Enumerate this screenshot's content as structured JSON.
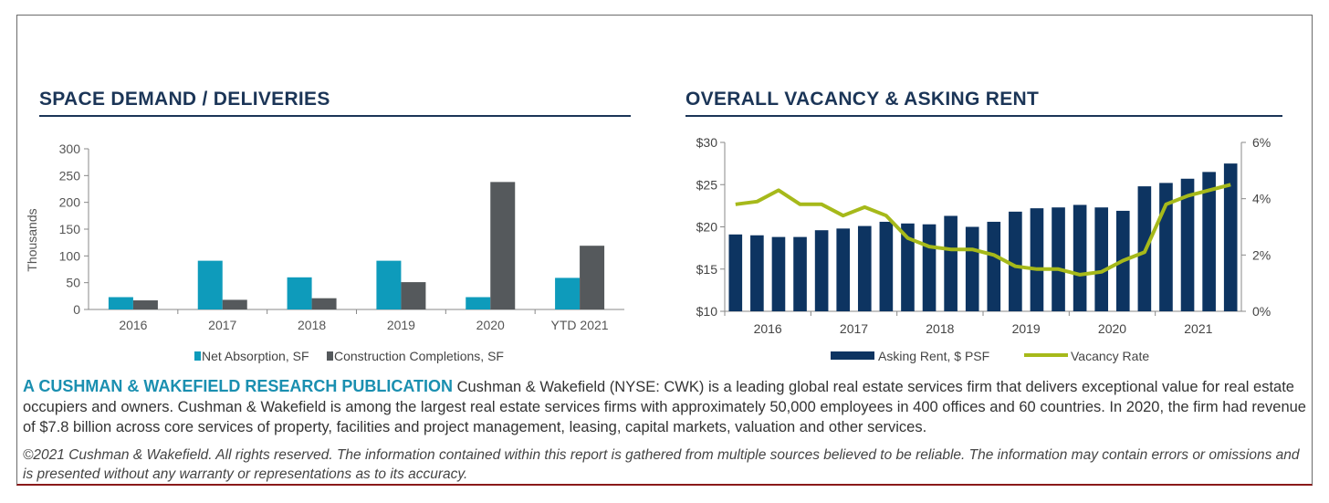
{
  "chart_data": [
    {
      "type": "bar",
      "title": "SPACE DEMAND / DELIVERIES",
      "xlabel": "",
      "ylabel": "Thousands",
      "ylim": [
        0,
        300
      ],
      "yticks": [
        "300",
        "250",
        "200",
        "150",
        "100",
        "50",
        "0"
      ],
      "categories": [
        "2016",
        "2017",
        "2018",
        "2019",
        "2020",
        "YTD 2021"
      ],
      "series": [
        {
          "name": "Net Absorption, SF",
          "color": "#0e9bbb",
          "values": [
            23,
            91,
            60,
            91,
            23,
            59
          ]
        },
        {
          "name": "Construction Completions, SF",
          "color": "#55595c",
          "values": [
            17,
            18,
            21,
            51,
            238,
            119
          ]
        }
      ],
      "legend": "bottom",
      "grid": false
    },
    {
      "type": "bar+line",
      "title": "OVERALL VACANCY & ASKING RENT",
      "ylim_left": [
        10,
        30
      ],
      "ylim_right": [
        0,
        6
      ],
      "yticks_left": [
        "$30",
        "$25",
        "$20",
        "$15",
        "$10"
      ],
      "yticks_right": [
        "6%",
        "4%",
        "2%",
        "0%"
      ],
      "xtick_labels": [
        "2016",
        "2017",
        "2018",
        "2019",
        "2020",
        "2021"
      ],
      "series": [
        {
          "name": "Asking Rent, $ PSF",
          "type": "bar",
          "color": "#0d3461",
          "values": [
            19.1,
            19.0,
            18.8,
            18.8,
            19.6,
            19.8,
            20.1,
            20.6,
            20.4,
            20.3,
            21.3,
            20.0,
            20.6,
            21.8,
            22.2,
            22.3,
            22.6,
            22.3,
            21.9,
            24.8,
            25.2,
            25.7,
            26.5,
            27.5
          ]
        },
        {
          "name": "Vacancy Rate",
          "type": "line",
          "color": "#a6b91a",
          "values": [
            3.8,
            3.9,
            4.3,
            3.8,
            3.8,
            3.4,
            3.7,
            3.4,
            2.6,
            2.3,
            2.2,
            2.2,
            2.0,
            1.6,
            1.5,
            1.5,
            1.3,
            1.4,
            1.8,
            2.1,
            3.8,
            4.1,
            4.3,
            4.5
          ]
        }
      ],
      "legend": "bottom",
      "grid": false
    }
  ],
  "publication": {
    "heading": "A CUSHMAN & WAKEFIELD RESEARCH PUBLICATION",
    "body": " Cushman & Wakefield (NYSE: CWK) is a leading global real  estate services firm that delivers exceptional value for real  estate occupiers and owners. Cushman & Wakefield is among  the largest real estate services firms with approximately  50,000 employees in 400 offices and 60 countries. In 2020,  the firm had revenue of $7.8 billion across core services of  property, facilities and project management, leasing, capital  markets, valuation and other services."
  },
  "copyright": "©2021 Cushman & Wakefield. All rights reserved. The information  contained within this report is gathered from multiple sources believed  to be reliable. The information may contain errors or omissions and is  presented without any warranty or representations as to its accuracy."
}
